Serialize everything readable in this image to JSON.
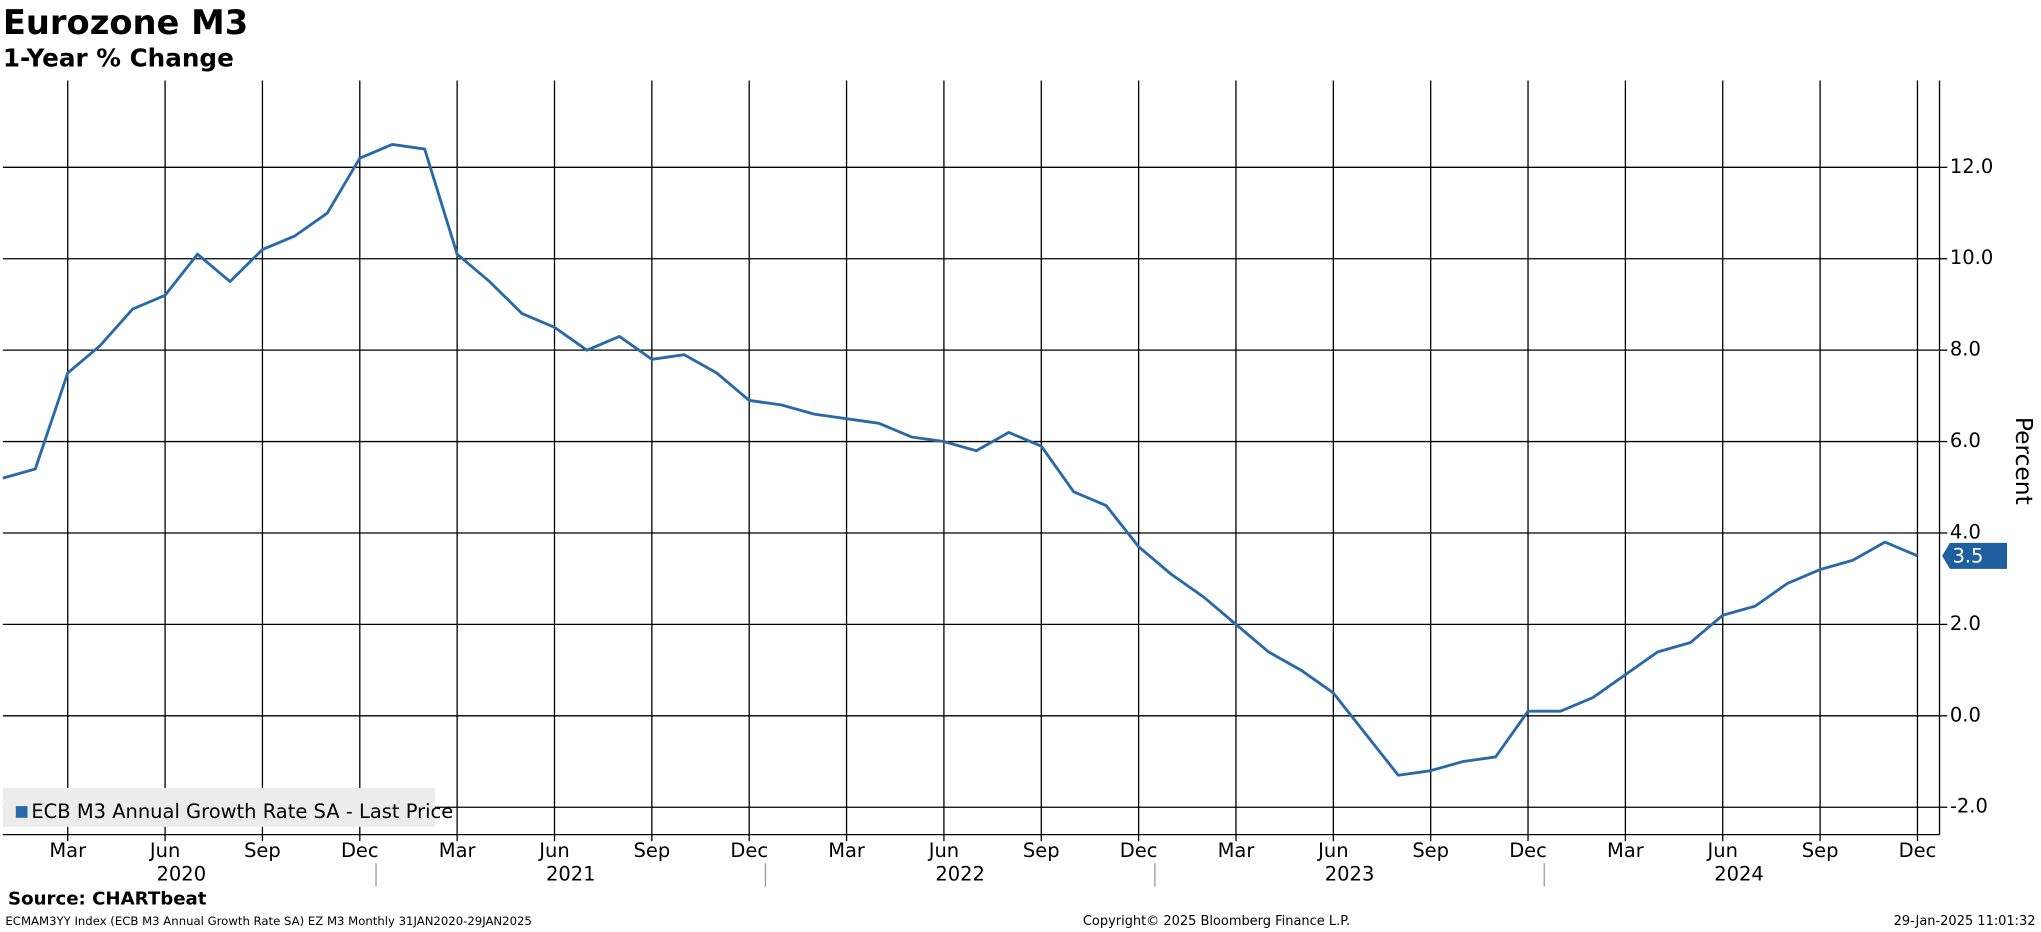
{
  "chart_data": {
    "type": "line",
    "title": "Eurozone M3",
    "subtitle": "1-Year % Change",
    "y_axis_label": "Percent",
    "x": [
      "2020-01",
      "2020-02",
      "2020-03",
      "2020-04",
      "2020-05",
      "2020-06",
      "2020-07",
      "2020-08",
      "2020-09",
      "2020-10",
      "2020-11",
      "2020-12",
      "2021-01",
      "2021-02",
      "2021-03",
      "2021-04",
      "2021-05",
      "2021-06",
      "2021-07",
      "2021-08",
      "2021-09",
      "2021-10",
      "2021-11",
      "2021-12",
      "2022-01",
      "2022-02",
      "2022-03",
      "2022-04",
      "2022-05",
      "2022-06",
      "2022-07",
      "2022-08",
      "2022-09",
      "2022-10",
      "2022-11",
      "2022-12",
      "2023-01",
      "2023-02",
      "2023-03",
      "2023-04",
      "2023-05",
      "2023-06",
      "2023-07",
      "2023-08",
      "2023-09",
      "2023-10",
      "2023-11",
      "2023-12",
      "2024-01",
      "2024-02",
      "2024-03",
      "2024-04",
      "2024-05",
      "2024-06",
      "2024-07",
      "2024-08",
      "2024-09",
      "2024-10",
      "2024-11",
      "2024-12"
    ],
    "series": [
      {
        "name": "ECB M3 Annual Growth Rate SA - Last Price",
        "color": "#2a69a8",
        "values": [
          5.2,
          5.4,
          7.5,
          8.1,
          8.9,
          9.2,
          10.1,
          9.5,
          10.2,
          10.5,
          11.0,
          12.2,
          12.5,
          12.4,
          10.1,
          9.5,
          8.8,
          8.5,
          8.0,
          8.3,
          7.8,
          7.9,
          7.5,
          6.9,
          6.8,
          6.6,
          6.5,
          6.4,
          6.1,
          6.0,
          5.8,
          6.2,
          5.9,
          4.9,
          4.6,
          3.7,
          3.1,
          2.6,
          2.0,
          1.4,
          1.0,
          0.5,
          -0.4,
          -1.3,
          -1.2,
          -1.0,
          -0.9,
          0.1,
          0.1,
          0.4,
          0.9,
          1.4,
          1.6,
          2.2,
          2.4,
          2.9,
          3.2,
          3.4,
          3.8,
          3.5
        ]
      }
    ],
    "last_value_color": "#1f5fa0",
    "ylim": [
      -2.6,
      13.9
    ],
    "yticks": [
      {
        "value": -2,
        "label": "-2.0"
      },
      {
        "value": 0,
        "label": "0.0"
      },
      {
        "value": 2,
        "label": "2.0"
      },
      {
        "value": 4,
        "label": "4.0"
      },
      {
        "value": 6,
        "label": "6.0"
      },
      {
        "value": 8,
        "label": "8.0"
      },
      {
        "value": 10,
        "label": "10.0"
      },
      {
        "value": 12,
        "label": "12.0"
      }
    ],
    "xticks": [
      {
        "value": "2020-03",
        "label": "Mar"
      },
      {
        "value": "2020-06",
        "label": "Jun"
      },
      {
        "value": "2020-09",
        "label": "Sep"
      },
      {
        "value": "2020-12",
        "label": "Dec"
      },
      {
        "value": "2021-03",
        "label": "Mar"
      },
      {
        "value": "2021-06",
        "label": "Jun"
      },
      {
        "value": "2021-09",
        "label": "Sep"
      },
      {
        "value": "2021-12",
        "label": "Dec"
      },
      {
        "value": "2022-03",
        "label": "Mar"
      },
      {
        "value": "2022-06",
        "label": "Jun"
      },
      {
        "value": "2022-09",
        "label": "Sep"
      },
      {
        "value": "2022-12",
        "label": "Dec"
      },
      {
        "value": "2023-03",
        "label": "Mar"
      },
      {
        "value": "2023-06",
        "label": "Jun"
      },
      {
        "value": "2023-09",
        "label": "Sep"
      },
      {
        "value": "2023-12",
        "label": "Dec"
      },
      {
        "value": "2024-03",
        "label": "Mar"
      },
      {
        "value": "2024-06",
        "label": "Jun"
      },
      {
        "value": "2024-09",
        "label": "Sep"
      },
      {
        "value": "2024-12",
        "label": "Dec"
      }
    ],
    "x_years": [
      2020,
      2021,
      2022,
      2023,
      2024
    ],
    "grid": true,
    "legend": "lower left",
    "source": "Source: CHARTbeat",
    "footer_left": "ECMAM3YY Index (ECB M3 Annual Growth Rate SA) EZ M3  Monthly 31JAN2020-29JAN2025",
    "footer_center": "Copyright© 2025 Bloomberg Finance L.P.",
    "footer_right": "29-Jan-2025 11:01:32"
  }
}
